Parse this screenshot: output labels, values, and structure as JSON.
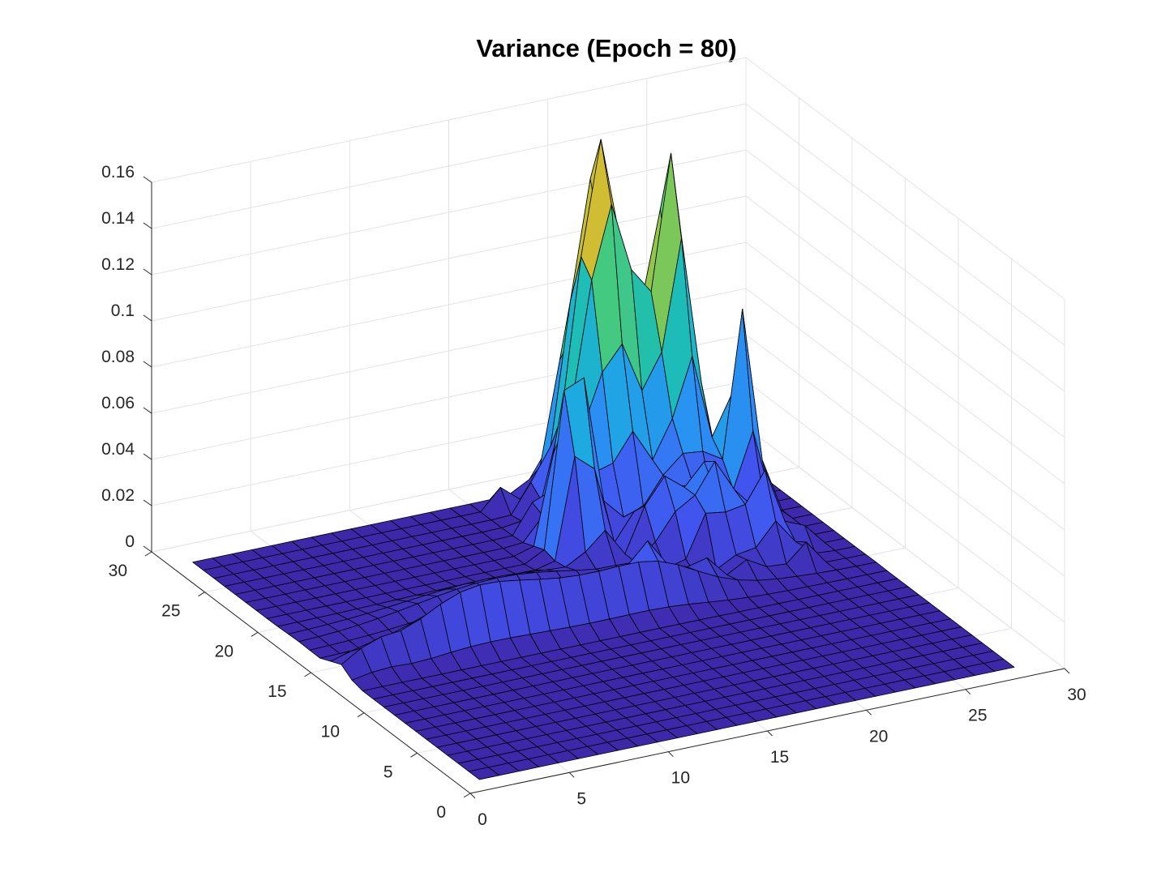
{
  "chart_data": {
    "type": "surface",
    "title": "Variance (Epoch = 80)",
    "xlabel": "",
    "ylabel": "",
    "zlabel": "",
    "xlim": [
      0,
      30
    ],
    "ylim": [
      0,
      30
    ],
    "zlim": [
      0,
      0.16
    ],
    "x_ticks": [
      "0",
      "5",
      "10",
      "15",
      "20",
      "25",
      "30"
    ],
    "y_ticks": [
      "0",
      "5",
      "10",
      "15",
      "20",
      "25",
      "30"
    ],
    "z_ticks": [
      "0",
      "0.02",
      "0.04",
      "0.06",
      "0.08",
      "0.1",
      "0.12",
      "0.14",
      "0.16"
    ],
    "grid": true,
    "colormap": [
      "#3e26a8",
      "#4353ee",
      "#2e87f7",
      "#1cace0",
      "#1ebfb0",
      "#4ccb77",
      "#b4c234",
      "#feb532",
      "#f9fb0e"
    ],
    "grid_points": "x = 1..28, y = 1..28 (unit spacing)",
    "description_of_values": "near-zero plateau with a ridge along y≈14–15 (x≈4–20, z≈0.02–0.035) and several sharp peaks in the region x≈16–26, y≈15–28",
    "peaks": [
      {
        "x": 19,
        "y": 25,
        "z": 0.16
      },
      {
        "x": 21,
        "y": 25,
        "z": 0.16
      },
      {
        "x": 23,
        "y": 24,
        "z": 0.147
      },
      {
        "x": 16.5,
        "y": 21,
        "z": 0.105
      },
      {
        "x": 25,
        "y": 21,
        "z": 0.095
      },
      {
        "x": 22,
        "y": 18,
        "z": 0.04
      },
      {
        "x": 24,
        "y": 17,
        "z": 0.03
      }
    ]
  }
}
